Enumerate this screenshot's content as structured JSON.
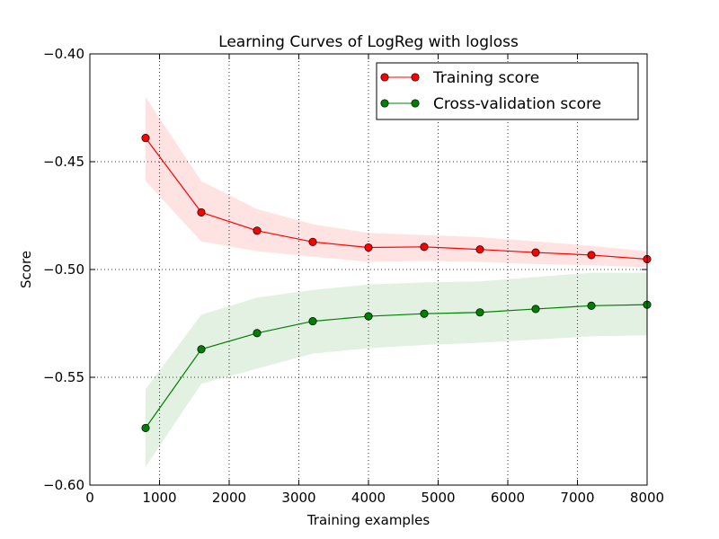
{
  "chart_data": {
    "type": "line",
    "title": "Learning Curves of LogReg with logloss",
    "xlabel": "Training examples",
    "ylabel": "Score",
    "xlim": [
      0,
      8000
    ],
    "ylim": [
      -0.6,
      -0.4
    ],
    "xticks": [
      0,
      1000,
      2000,
      3000,
      4000,
      5000,
      6000,
      7000,
      8000
    ],
    "xtick_labels": [
      "0",
      "1000",
      "2000",
      "3000",
      "4000",
      "5000",
      "6000",
      "7000",
      "8000"
    ],
    "yticks": [
      -0.4,
      -0.45,
      -0.5,
      -0.55,
      -0.6
    ],
    "ytick_labels": [
      "−0.40",
      "−0.45",
      "−0.50",
      "−0.55",
      "−0.60"
    ],
    "grid": true,
    "grid_style": "dotted",
    "legend_position": "upper-right",
    "x": [
      800,
      1600,
      2400,
      3200,
      4000,
      4800,
      5600,
      6400,
      7200,
      8000
    ],
    "series": [
      {
        "name": "Training score",
        "color": "#ff0000",
        "marker_color": "#ff0000",
        "band_color": "#ffcccc",
        "values": [
          -0.439,
          -0.4735,
          -0.482,
          -0.4872,
          -0.4898,
          -0.4895,
          -0.4907,
          -0.4921,
          -0.4933,
          -0.4952
        ],
        "upper": [
          -0.42,
          -0.459,
          -0.472,
          -0.479,
          -0.483,
          -0.484,
          -0.485,
          -0.487,
          -0.489,
          -0.4915
        ],
        "lower": [
          -0.459,
          -0.487,
          -0.4915,
          -0.494,
          -0.4965,
          -0.496,
          -0.4965,
          -0.4975,
          -0.498,
          -0.499
        ]
      },
      {
        "name": "Cross-validation score",
        "color": "#008000",
        "marker_color": "#008000",
        "band_color": "#cce6cc",
        "values": [
          -0.5735,
          -0.537,
          -0.5295,
          -0.524,
          -0.5217,
          -0.5205,
          -0.5199,
          -0.5183,
          -0.5168,
          -0.5163
        ],
        "upper": [
          -0.5555,
          -0.521,
          -0.513,
          -0.5095,
          -0.507,
          -0.506,
          -0.5055,
          -0.5035,
          -0.5015,
          -0.5015
        ],
        "lower": [
          -0.5915,
          -0.553,
          -0.546,
          -0.539,
          -0.5365,
          -0.535,
          -0.534,
          -0.5325,
          -0.531,
          -0.5305
        ]
      }
    ]
  }
}
